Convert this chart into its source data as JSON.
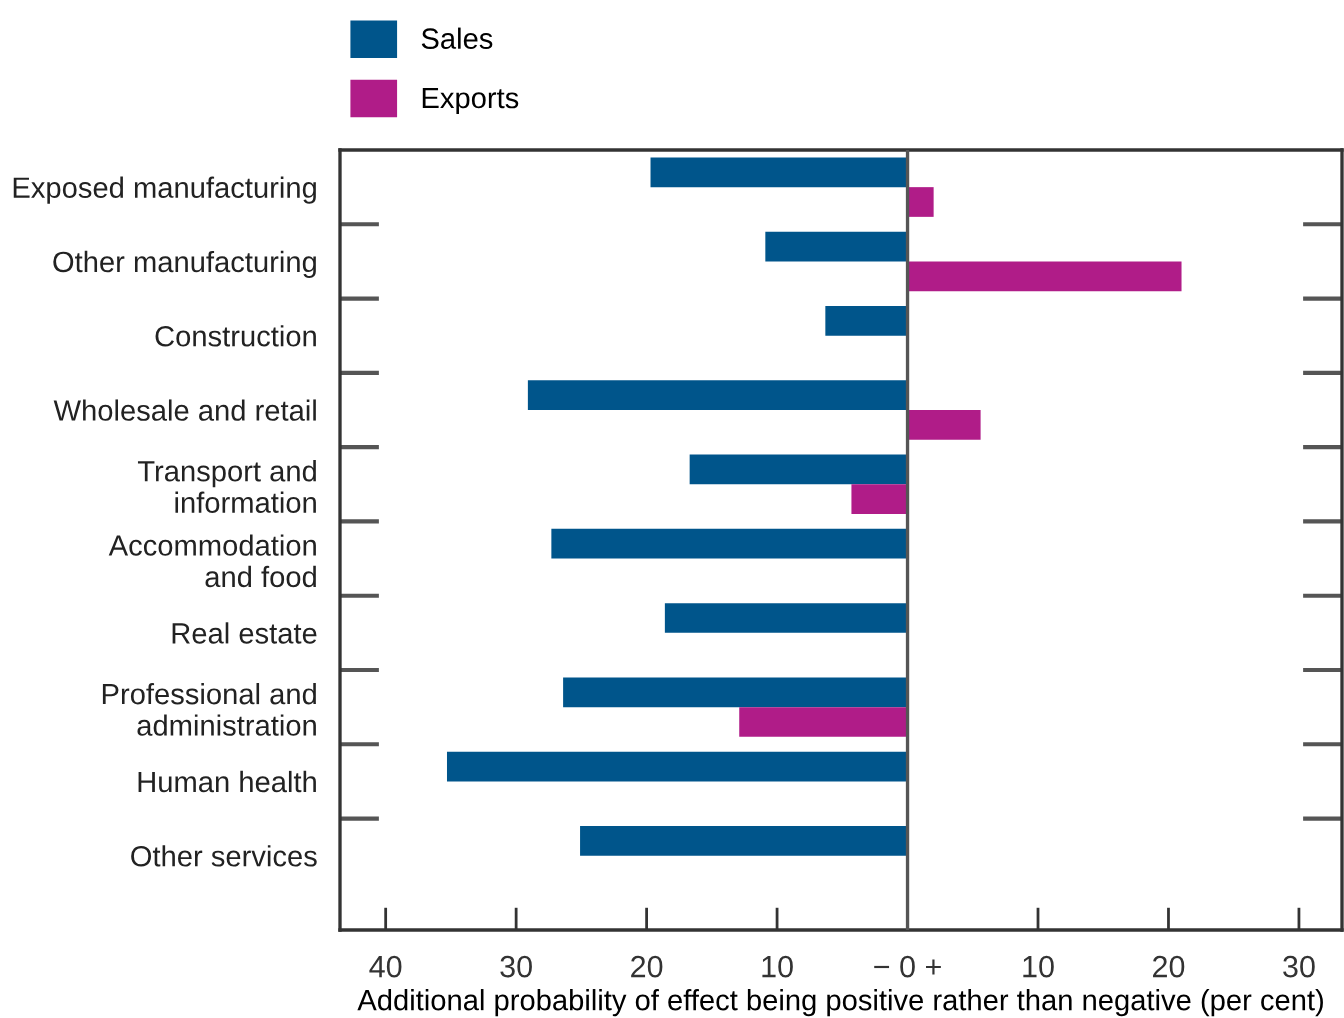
{
  "chart_data": {
    "type": "bar",
    "orientation": "horizontal",
    "categories": [
      "Exposed manufacturing",
      "Other manufacturing",
      "Construction",
      "Wholesale and retail",
      "Transport and\ninformation",
      "Accommodation\nand food",
      "Real estate",
      "Professional and\nadministration",
      "Human health",
      "Other services"
    ],
    "series": [
      {
        "name": "Sales",
        "color": "#00558b",
        "values": [
          -19.7,
          -10.9,
          -6.3,
          -29.1,
          -16.7,
          -27.3,
          -18.6,
          -26.4,
          -35.3,
          -25.1
        ]
      },
      {
        "name": "Exports",
        "color": "#b01c88",
        "values": [
          2.0,
          21.0,
          null,
          5.6,
          -4.3,
          null,
          null,
          -12.9,
          null,
          null
        ]
      }
    ],
    "xlim": [
      -43.5,
      33.3
    ],
    "xticks": [
      {
        "value": -40,
        "label": "40"
      },
      {
        "value": -30,
        "label": "30"
      },
      {
        "value": -20,
        "label": "20"
      },
      {
        "value": -10,
        "label": "10"
      },
      {
        "value": 0,
        "label": "− 0 +"
      },
      10,
      20,
      30
    ],
    "xlabel": "Additional probability of effect being positive rather than negative (per cent)",
    "ref_lines": [
      {
        "axis": "x",
        "value": 0,
        "color": "#555555"
      }
    ],
    "legend": "top left",
    "grid": false
  }
}
